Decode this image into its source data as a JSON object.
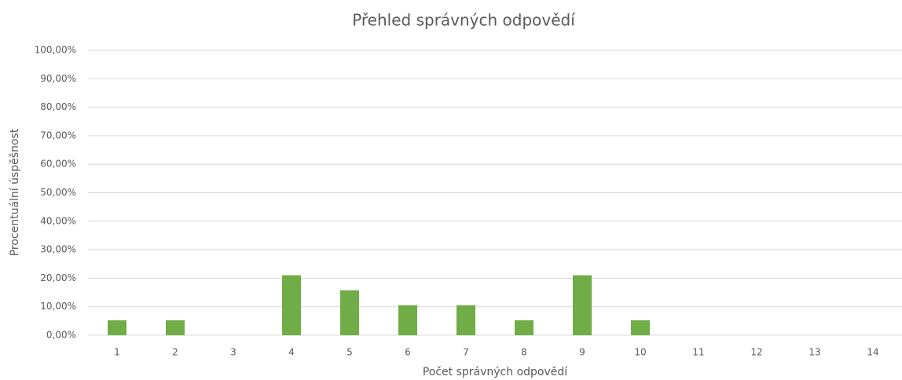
{
  "chart_data": {
    "type": "bar",
    "title": "Přehled správných odpovědí",
    "x_label": "Počet správných odpovědí",
    "y_label": "Procentuální úspěšnost",
    "categories": [
      "1",
      "2",
      "3",
      "4",
      "5",
      "6",
      "7",
      "8",
      "9",
      "10",
      "11",
      "12",
      "13",
      "14"
    ],
    "values": [
      5.26,
      5.26,
      0,
      21.05,
      15.79,
      10.53,
      10.53,
      5.26,
      21.05,
      5.26,
      0,
      0,
      0,
      0
    ],
    "color": "#70ad47",
    "ylim": [
      0,
      100
    ],
    "yticks": [
      {
        "value": 0,
        "label": "0,00%"
      },
      {
        "value": 10,
        "label": "10,00%"
      },
      {
        "value": 20,
        "label": "20,00%"
      },
      {
        "value": 30,
        "label": "30,00%"
      },
      {
        "value": 40,
        "label": "40,00%"
      },
      {
        "value": 50,
        "label": "50,00%"
      },
      {
        "value": 60,
        "label": "60,00%"
      },
      {
        "value": 70,
        "label": "70,00%"
      },
      {
        "value": 80,
        "label": "80,00%"
      },
      {
        "value": 90,
        "label": "90,00%"
      },
      {
        "value": 100,
        "label": "100,00%"
      }
    ],
    "grid": true
  }
}
